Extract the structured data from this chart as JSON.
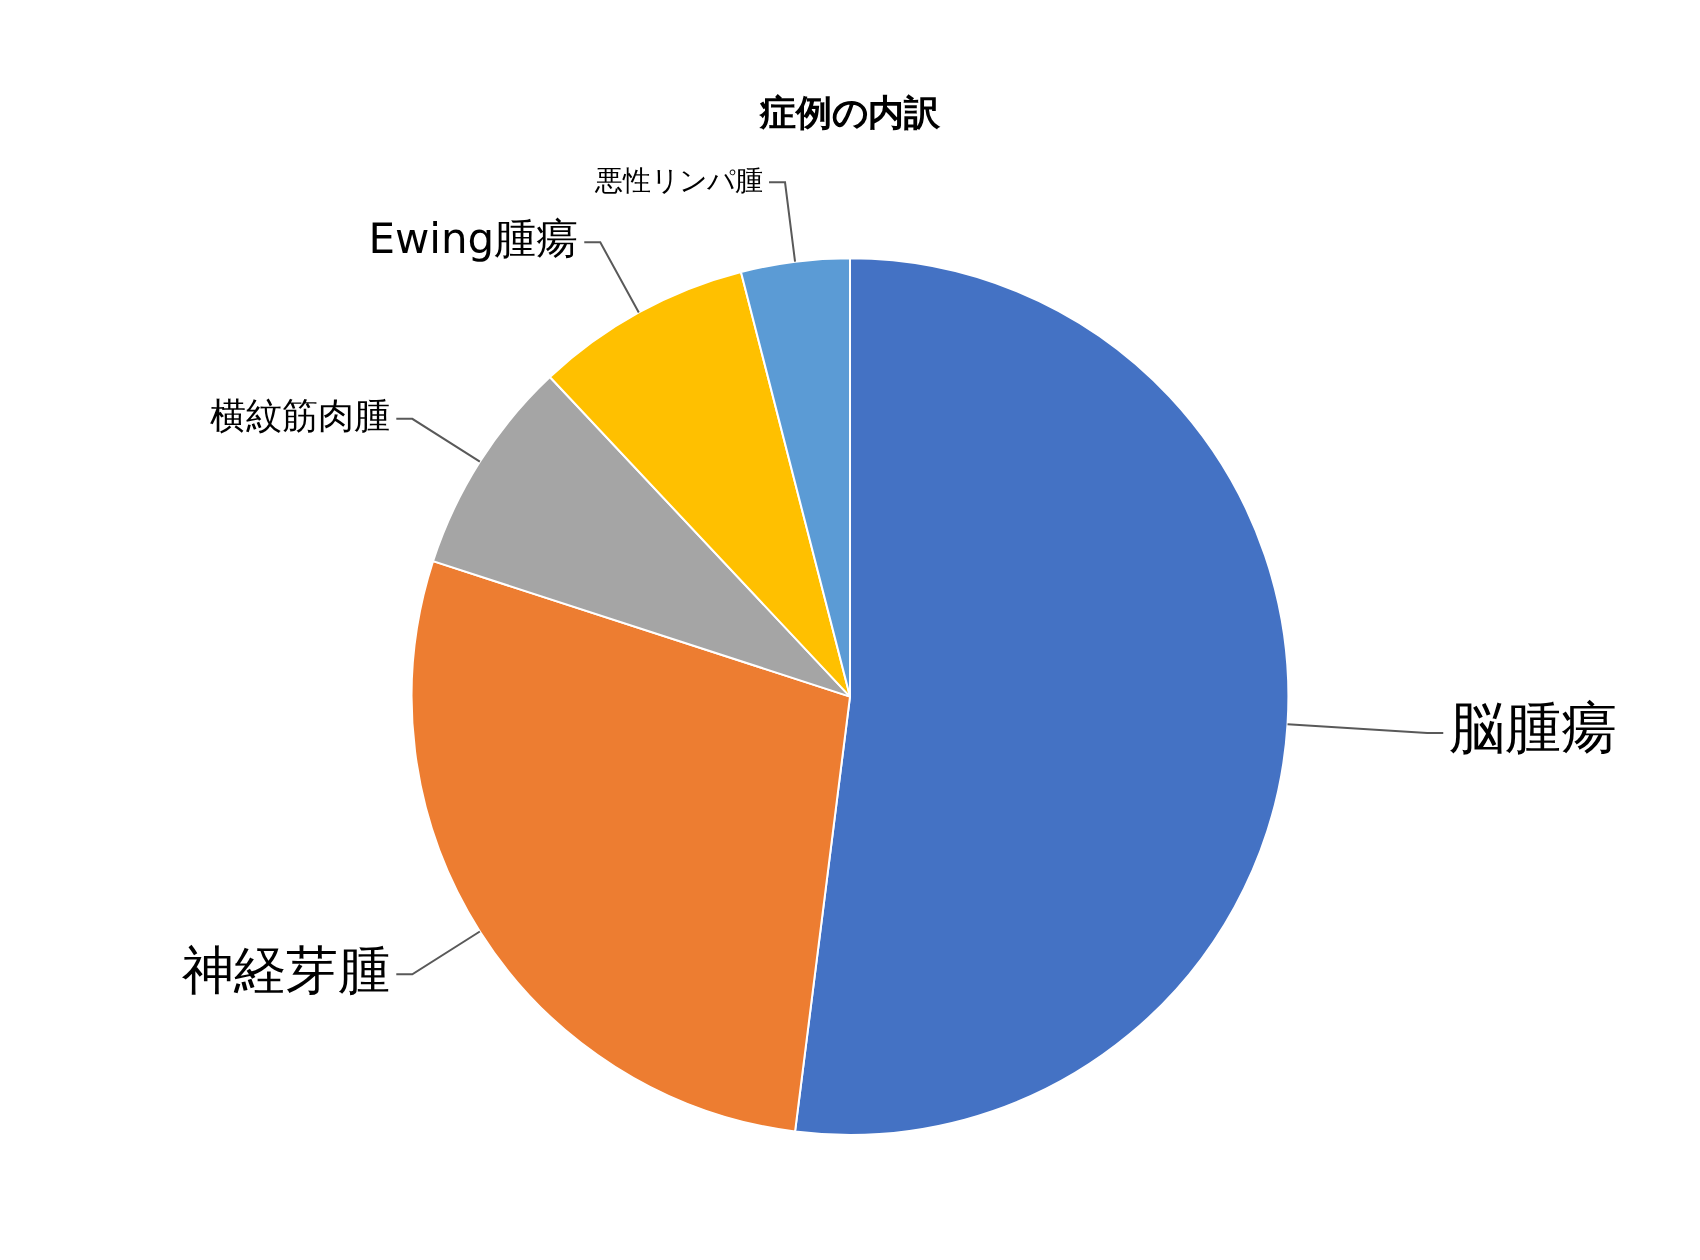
{
  "chart_data": {
    "type": "pie",
    "title": "症例の内訳",
    "categories": [
      "脳腫瘍",
      "神経芽腫",
      "横紋筋肉腫",
      "Ewing腫瘍",
      "悪性リンパ腫"
    ],
    "values": [
      52,
      28,
      8,
      8,
      4
    ],
    "colors": [
      "#4472c4",
      "#ed7d31",
      "#a5a5a5",
      "#ffc000",
      "#5b9bd5"
    ],
    "legend": false
  }
}
